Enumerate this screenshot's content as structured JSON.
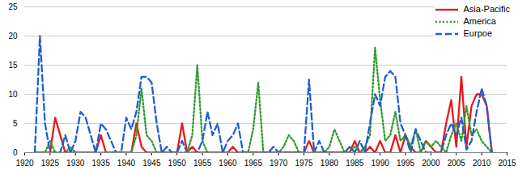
{
  "chart_data": {
    "type": "line",
    "x": [
      1922,
      1923,
      1924,
      1925,
      1926,
      1927,
      1928,
      1929,
      1930,
      1931,
      1932,
      1933,
      1934,
      1935,
      1936,
      1937,
      1938,
      1939,
      1940,
      1941,
      1942,
      1943,
      1944,
      1945,
      1946,
      1947,
      1948,
      1949,
      1950,
      1951,
      1952,
      1953,
      1954,
      1955,
      1956,
      1957,
      1958,
      1959,
      1960,
      1961,
      1962,
      1963,
      1964,
      1965,
      1966,
      1967,
      1968,
      1969,
      1970,
      1971,
      1972,
      1973,
      1974,
      1975,
      1976,
      1977,
      1978,
      1979,
      1980,
      1981,
      1982,
      1983,
      1984,
      1985,
      1986,
      1987,
      1988,
      1989,
      1990,
      1991,
      1992,
      1993,
      1994,
      1995,
      1996,
      1997,
      1998,
      1999,
      2000,
      2001,
      2002,
      2003,
      2004,
      2005,
      2006,
      2007,
      2008,
      2009,
      2010,
      2011,
      2012
    ],
    "series": [
      {
        "name": "Asia-Pacific",
        "color": "#e8191d",
        "line_style": "solid",
        "values": [
          0,
          0,
          0,
          0,
          6,
          3,
          0,
          0,
          0,
          0,
          0,
          0,
          0,
          3,
          0,
          0,
          0,
          0,
          0,
          0,
          5,
          1,
          0,
          0,
          0,
          0,
          0,
          0,
          0,
          5,
          0,
          1,
          0,
          0,
          0,
          0,
          0,
          0,
          0,
          1,
          0,
          0,
          0,
          0,
          0,
          0,
          0,
          0,
          0,
          0,
          0,
          0,
          0,
          0,
          2,
          0,
          0,
          0,
          0,
          0,
          0,
          0,
          0,
          2,
          0,
          0,
          1,
          0,
          2,
          0,
          0,
          3,
          0,
          3,
          1,
          0,
          0,
          2,
          1,
          0,
          0,
          5,
          9,
          1,
          13,
          1,
          8,
          10,
          10,
          8,
          0
        ]
      },
      {
        "name": "America",
        "color": "#2e9a2e",
        "line_style": "dotted",
        "values": [
          0,
          0,
          0,
          2,
          0,
          0,
          0,
          1,
          0,
          0,
          0,
          0,
          0,
          0,
          0,
          0,
          0,
          0,
          0,
          0,
          3,
          11,
          3,
          2,
          0,
          0,
          0,
          0,
          0,
          0,
          0,
          3,
          15,
          2,
          0,
          0,
          0,
          0,
          0,
          0,
          0,
          0,
          0,
          4,
          12,
          0,
          0,
          0,
          0,
          1,
          3,
          2,
          0,
          0,
          0,
          0,
          0,
          0,
          1,
          4,
          2,
          0,
          0,
          1,
          0,
          1,
          3,
          18,
          9,
          2,
          3,
          7,
          2,
          3,
          1,
          4,
          0,
          2,
          1,
          2,
          1,
          0,
          3,
          5,
          2,
          8,
          3,
          4,
          2,
          1,
          0
        ]
      },
      {
        "name": "Eurpoe",
        "color": "#1f5fd0",
        "line_style": "dashed",
        "values": [
          0,
          20,
          5,
          0,
          0,
          0,
          3,
          0,
          2,
          7,
          6,
          3,
          0,
          5,
          4,
          2,
          0,
          0,
          6,
          4,
          7,
          13,
          13,
          12,
          5,
          0,
          1,
          0,
          0,
          2,
          0,
          0,
          0,
          2,
          7,
          3,
          5,
          0,
          2,
          3,
          5,
          0,
          0,
          0,
          0,
          0,
          0,
          1,
          0,
          0,
          0,
          0,
          0,
          0,
          12.5,
          0,
          2,
          0,
          0,
          0,
          0,
          0,
          1,
          0,
          2,
          0,
          5,
          10,
          8,
          13,
          14,
          13,
          5,
          3,
          0,
          4,
          2,
          0,
          0,
          0,
          0,
          3,
          5,
          3,
          6,
          0.5,
          2,
          7,
          11,
          8,
          0
        ]
      }
    ],
    "xlim": [
      1920,
      2015
    ],
    "xticks": [
      1920,
      1925,
      1930,
      1935,
      1940,
      1945,
      1950,
      1955,
      1960,
      1965,
      1970,
      1975,
      1980,
      1985,
      1990,
      1995,
      2000,
      2005,
      2010,
      2015
    ],
    "ylim": [
      0,
      25
    ],
    "yticks": [
      0,
      5,
      10,
      15,
      20,
      25
    ],
    "grid": true,
    "legend": "top-right"
  }
}
